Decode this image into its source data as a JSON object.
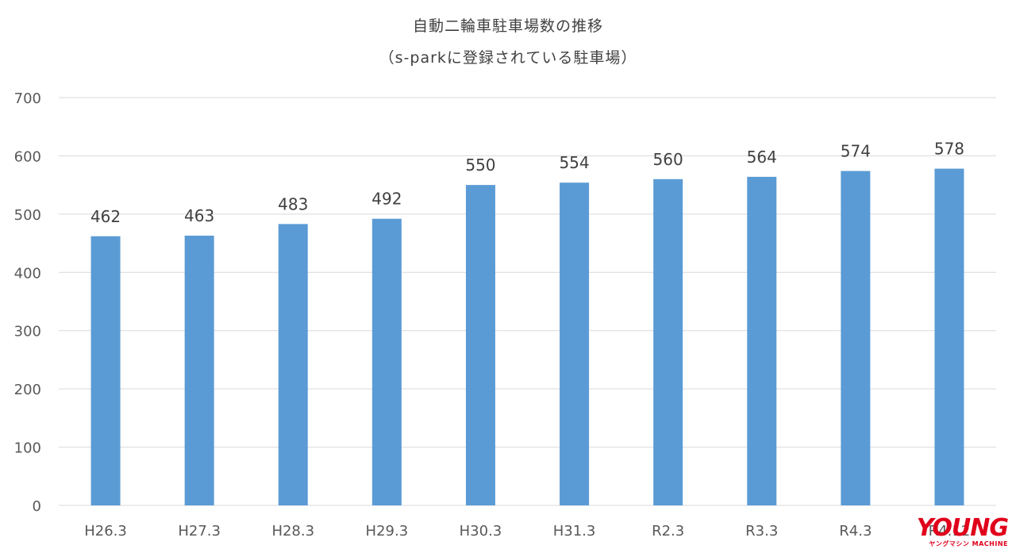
{
  "chart_data": {
    "type": "bar",
    "title": "自動二輪車駐車場数の推移",
    "subtitle": "（s-parkに登録されている駐車場）",
    "categories": [
      "H26.3",
      "H27.3",
      "H28.3",
      "H29.3",
      "H30.3",
      "H31.3",
      "R2.3",
      "R3.3",
      "R4.3",
      "R4.12"
    ],
    "values": [
      462,
      463,
      483,
      492,
      550,
      554,
      560,
      564,
      574,
      578
    ],
    "ylim": [
      0,
      700
    ],
    "yticks": [
      0,
      100,
      200,
      300,
      400,
      500,
      600,
      700
    ],
    "grid": true,
    "bar_color": "#5b9bd5",
    "data_labels": true
  },
  "watermark": {
    "main": "YOUNG",
    "sub": "ヤングマシン MACHINE"
  }
}
